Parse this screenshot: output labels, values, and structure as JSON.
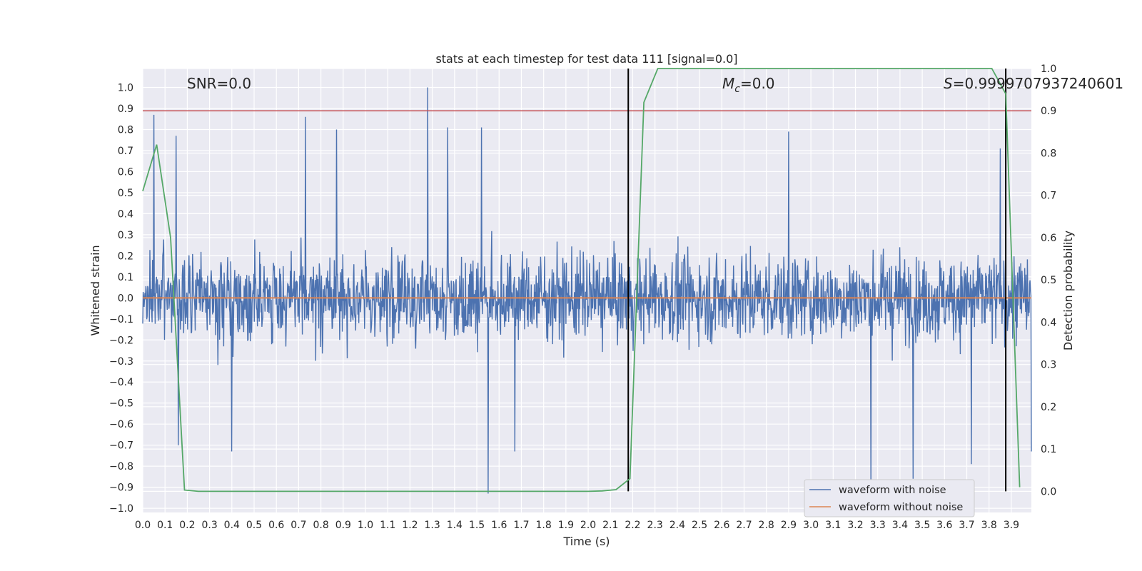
{
  "chart_data": {
    "type": "line",
    "title": "stats at each timestep for test data 111 [signal=0.0]",
    "xlabel": "Time (s)",
    "ylabel": "Whitened strain",
    "y2label": "Detection probability",
    "xlim": [
      0.0,
      3.99
    ],
    "ylim": [
      -1.02,
      1.09
    ],
    "y2lim": [
      -0.05,
      1.0
    ],
    "grid": true,
    "legend_position": "lower-right",
    "x_ticks": [
      "0.0",
      "0.1",
      "0.2",
      "0.3",
      "0.4",
      "0.5",
      "0.6",
      "0.7",
      "0.8",
      "0.9",
      "1.0",
      "1.1",
      "1.2",
      "1.3",
      "1.4",
      "1.5",
      "1.6",
      "1.7",
      "1.8",
      "1.9",
      "2.0",
      "2.1",
      "2.2",
      "2.3",
      "2.4",
      "2.5",
      "2.6",
      "2.7",
      "2.8",
      "2.9",
      "3.0",
      "3.1",
      "3.2",
      "3.3",
      "3.4",
      "3.5",
      "3.6",
      "3.7",
      "3.8",
      "3.9"
    ],
    "y_ticks": [
      "1.0",
      "0.9",
      "0.8",
      "0.7",
      "0.6",
      "0.5",
      "0.4",
      "0.3",
      "0.2",
      "0.1",
      "0.0",
      "−0.1",
      "−0.2",
      "−0.3",
      "−0.4",
      "−0.5",
      "−0.6",
      "−0.7",
      "−0.8",
      "−0.9",
      "−1.0"
    ],
    "y2_ticks": [
      "1.0",
      "0.9",
      "0.8",
      "0.7",
      "0.6",
      "0.5",
      "0.4",
      "0.3",
      "0.2",
      "0.1",
      "0.0"
    ],
    "annotations": {
      "snr": "SNR=0.0",
      "mc_symbol": "M",
      "mc_subscript": "c",
      "mc_value": "=0.0",
      "s_symbol": "S",
      "s_value": "=0.9999707937240601"
    },
    "series": [
      {
        "name": "waveform with noise",
        "color": "#4c72b0",
        "description_values": "dense noise between about -0.93 and 1.0",
        "peak_highs": [
          [
            0.05,
            0.87
          ],
          [
            0.15,
            0.77
          ],
          [
            0.73,
            0.86
          ],
          [
            0.87,
            0.8
          ],
          [
            1.28,
            1.0
          ],
          [
            1.37,
            0.81
          ],
          [
            1.52,
            0.81
          ],
          [
            2.9,
            0.79
          ],
          [
            3.85,
            0.71
          ]
        ],
        "peak_lows": [
          [
            0.16,
            -0.7
          ],
          [
            0.4,
            -0.73
          ],
          [
            1.55,
            -0.93
          ],
          [
            1.67,
            -0.73
          ],
          [
            3.27,
            -0.9
          ],
          [
            3.46,
            -0.86
          ],
          [
            3.72,
            -0.79
          ],
          [
            3.99,
            -0.73
          ]
        ]
      },
      {
        "name": "waveform without noise",
        "color": "#dd8452",
        "x": [
          0.0,
          3.99
        ],
        "y": [
          0.0,
          0.0
        ]
      },
      {
        "name": "threshold",
        "color": "#c44e52",
        "axis": "right",
        "x": [
          0.0,
          3.99
        ],
        "y": [
          0.9,
          0.9
        ]
      },
      {
        "name": "detection probability",
        "color": "#55a868",
        "axis": "right",
        "x": [
          0.0,
          0.0625,
          0.125,
          0.1875,
          0.25,
          0.3125,
          0.5,
          1.0,
          1.5,
          2.0,
          2.0625,
          2.125,
          2.1875,
          2.25,
          2.3125,
          2.5,
          3.0,
          3.5,
          3.8125,
          3.875,
          3.9375
        ],
        "y": [
          0.71,
          0.82,
          0.6,
          0.003,
          0.0,
          0.0,
          0.0,
          0.0,
          0.0,
          0.0,
          0.001,
          0.004,
          0.03,
          0.92,
          1.0,
          1.0,
          1.0,
          1.0,
          1.0,
          0.94,
          0.01
        ]
      }
    ],
    "vertical_markers": [
      2.18,
      3.875
    ],
    "marker_color": "#000000"
  }
}
